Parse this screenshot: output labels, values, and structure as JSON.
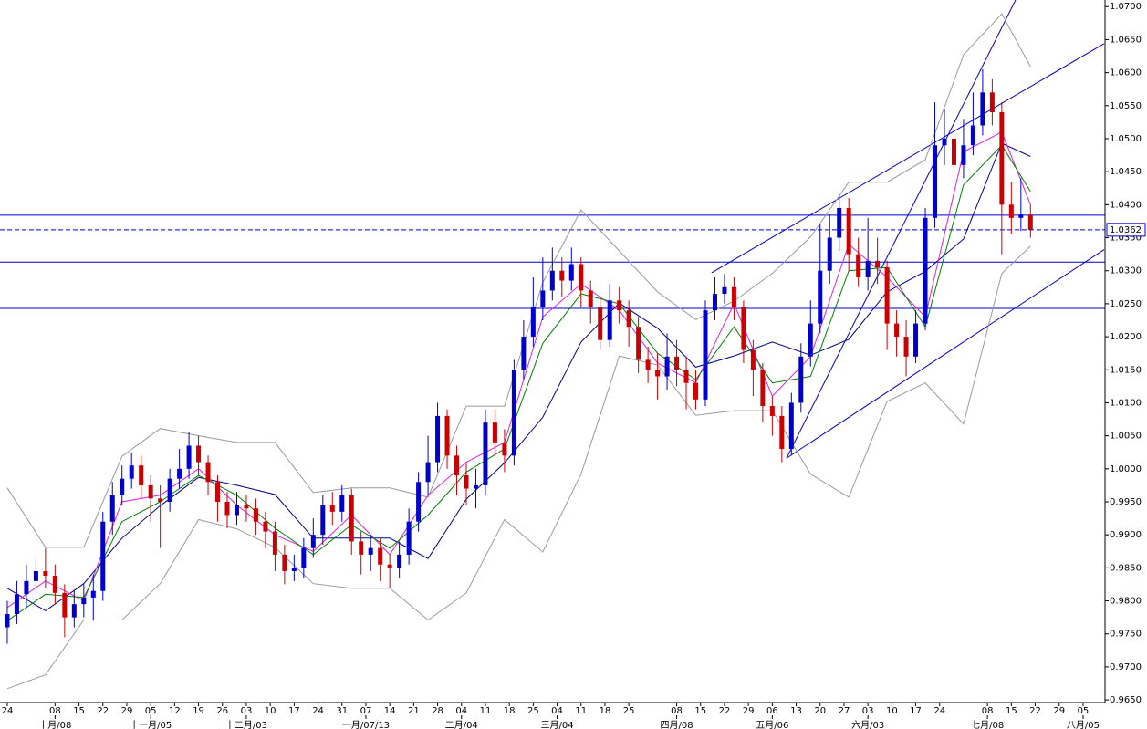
{
  "chart_data": {
    "type": "candlestick",
    "up_color": "#0000cc",
    "down_color": "#cc0000",
    "xlim": [
      -0.76,
      114.7
    ],
    "ylim": [
      0.9646,
      1.071
    ],
    "yticks": [
      {
        "value": 0.965,
        "label": "0.9650"
      },
      {
        "value": 0.97,
        "label": "0.9700"
      },
      {
        "value": 0.975,
        "label": "0.9750"
      },
      {
        "value": 0.98,
        "label": "0.9800"
      },
      {
        "value": 0.985,
        "label": "0.9850"
      },
      {
        "value": 0.99,
        "label": "0.9900"
      },
      {
        "value": 0.995,
        "label": "0.9950"
      },
      {
        "value": 1.0,
        "label": "1.0000"
      },
      {
        "value": 1.005,
        "label": "1.0050"
      },
      {
        "value": 1.01,
        "label": "1.0100"
      },
      {
        "value": 1.015,
        "label": "1.0150"
      },
      {
        "value": 1.02,
        "label": "1.0200"
      },
      {
        "value": 1.025,
        "label": "1.0250"
      },
      {
        "value": 1.03,
        "label": "1.0300"
      },
      {
        "value": 1.035,
        "label": "1.0350"
      },
      {
        "value": 1.04,
        "label": "1.0400"
      },
      {
        "value": 1.045,
        "label": "1.0450"
      },
      {
        "value": 1.05,
        "label": "1.0500"
      },
      {
        "value": 1.055,
        "label": "1.0550"
      },
      {
        "value": 1.06,
        "label": "1.0600"
      },
      {
        "value": 1.065,
        "label": "1.0650"
      },
      {
        "value": 1.07,
        "label": "1.0700"
      }
    ],
    "xticks": [
      {
        "value": 0,
        "label": "24"
      },
      {
        "value": 5,
        "label": "08"
      },
      {
        "value": 7.5,
        "label": "15"
      },
      {
        "value": 10,
        "label": "22"
      },
      {
        "value": 12.5,
        "label": "29"
      },
      {
        "value": 15,
        "label": "05"
      },
      {
        "value": 17.5,
        "label": "12"
      },
      {
        "value": 20,
        "label": "19"
      },
      {
        "value": 22.5,
        "label": "26"
      },
      {
        "value": 25,
        "label": "03"
      },
      {
        "value": 27.5,
        "label": "10"
      },
      {
        "value": 30,
        "label": "17"
      },
      {
        "value": 32.5,
        "label": "24"
      },
      {
        "value": 35,
        "label": "31"
      },
      {
        "value": 37.5,
        "label": "07"
      },
      {
        "value": 40,
        "label": "14"
      },
      {
        "value": 42.5,
        "label": "21"
      },
      {
        "value": 45,
        "label": "28"
      },
      {
        "value": 47.5,
        "label": "04"
      },
      {
        "value": 50,
        "label": "11"
      },
      {
        "value": 52.5,
        "label": "18"
      },
      {
        "value": 55,
        "label": "25"
      },
      {
        "value": 57.5,
        "label": "04"
      },
      {
        "value": 60,
        "label": "11"
      },
      {
        "value": 62.5,
        "label": "18"
      },
      {
        "value": 65,
        "label": "25"
      },
      {
        "value": 70,
        "label": "08"
      },
      {
        "value": 72.5,
        "label": "15"
      },
      {
        "value": 75,
        "label": "22"
      },
      {
        "value": 77.5,
        "label": "29"
      },
      {
        "value": 80,
        "label": "06"
      },
      {
        "value": 82.5,
        "label": "13"
      },
      {
        "value": 85,
        "label": "20"
      },
      {
        "value": 87.5,
        "label": "27"
      },
      {
        "value": 90,
        "label": "03"
      },
      {
        "value": 92.5,
        "label": "10"
      },
      {
        "value": 95,
        "label": "17"
      },
      {
        "value": 97.5,
        "label": "24"
      },
      {
        "value": 102.5,
        "label": "08"
      },
      {
        "value": 105,
        "label": "15"
      },
      {
        "value": 107.5,
        "label": "22"
      },
      {
        "value": 110,
        "label": "29"
      },
      {
        "value": 112.5,
        "label": "05"
      }
    ],
    "month_ticks": [
      {
        "value": 5,
        "label": "十月/08"
      },
      {
        "value": 15,
        "label": "十一月/05"
      },
      {
        "value": 25,
        "label": "十二月/03"
      },
      {
        "value": 37.5,
        "label": "一月/07/13"
      },
      {
        "value": 47.5,
        "label": "二月/04"
      },
      {
        "value": 57.5,
        "label": "三月/04"
      },
      {
        "value": 70,
        "label": "四月/08"
      },
      {
        "value": 80,
        "label": "五月/06"
      },
      {
        "value": 90,
        "label": "六月/03"
      },
      {
        "value": 102.5,
        "label": "七月/08"
      },
      {
        "value": 112.5,
        "label": "八月/05"
      }
    ],
    "candles": {
      "open": [
        0.976,
        0.978,
        0.981,
        0.983,
        0.9845,
        0.9838,
        0.9812,
        0.9775,
        0.9795,
        0.9805,
        0.9815,
        0.992,
        0.996,
        0.9985,
        1.0005,
        0.9975,
        0.9955,
        0.995,
        0.9985,
        1.0,
        1.0035,
        1.001,
        0.998,
        0.995,
        0.993,
        0.9945,
        0.994,
        0.992,
        0.9905,
        0.987,
        0.9845,
        0.985,
        0.988,
        0.99,
        0.9945,
        0.9935,
        0.996,
        0.989,
        0.987,
        0.988,
        0.9855,
        0.985,
        0.987,
        0.992,
        0.998,
        1.001,
        1.008,
        1.002,
        0.999,
        0.997,
        0.9975,
        1.007,
        1.004,
        1.002,
        1.015,
        1.02,
        1.0245,
        1.027,
        1.03,
        1.0285,
        1.031,
        1.027,
        1.0245,
        1.0195,
        1.0255,
        1.024,
        1.0215,
        1.0165,
        1.015,
        1.014,
        1.017,
        1.015,
        1.013,
        1.0105,
        1.024,
        1.0265,
        1.0275,
        1.0245,
        1.018,
        1.015,
        1.0095,
        1.008,
        1.003,
        1.01,
        1.017,
        1.022,
        1.03,
        1.035,
        1.0395,
        1.0325,
        1.029,
        1.0315,
        1.0305,
        1.022,
        1.02,
        1.017,
        1.022,
        1.038,
        1.049,
        1.05,
        1.046,
        1.049,
        1.052,
        1.057,
        1.054,
        1.04,
        1.038,
        1.0385
      ],
      "high": [
        0.98,
        0.983,
        0.9855,
        0.9865,
        0.988,
        0.9855,
        0.9825,
        0.9815,
        0.9825,
        0.984,
        0.9935,
        0.998,
        1.0005,
        1.0025,
        1.002,
        0.999,
        0.9975,
        1.0,
        1.003,
        1.0055,
        1.005,
        1.002,
        0.999,
        0.9965,
        0.9965,
        0.996,
        0.9955,
        0.9935,
        0.992,
        0.9885,
        0.987,
        0.9895,
        0.9925,
        0.996,
        0.9965,
        0.9975,
        0.997,
        0.9905,
        0.99,
        0.9895,
        0.987,
        0.989,
        0.994,
        0.9995,
        1.005,
        1.01,
        1.009,
        1.0035,
        1.001,
        1.0,
        1.009,
        1.009,
        1.006,
        1.0165,
        1.0225,
        1.029,
        1.032,
        1.0335,
        1.032,
        1.0335,
        1.032,
        1.0285,
        1.026,
        1.028,
        1.0275,
        1.0255,
        1.023,
        1.0185,
        1.0175,
        1.0205,
        1.0195,
        1.017,
        1.015,
        1.0255,
        1.029,
        1.0295,
        1.029,
        1.0255,
        1.0195,
        1.016,
        1.011,
        1.0095,
        1.0115,
        1.019,
        1.0255,
        1.037,
        1.0385,
        1.0415,
        1.041,
        1.035,
        1.038,
        1.035,
        1.0315,
        1.024,
        1.0225,
        1.024,
        1.0395,
        1.0555,
        1.0545,
        1.052,
        1.053,
        1.057,
        1.0605,
        1.059,
        1.0555,
        1.0435,
        1.044,
        1.04
      ],
      "low": [
        0.9735,
        0.9765,
        0.979,
        0.981,
        0.982,
        0.9795,
        0.9745,
        0.976,
        0.9775,
        0.977,
        0.98,
        0.99,
        0.9945,
        0.997,
        0.9955,
        0.992,
        0.988,
        0.9935,
        0.997,
        0.9985,
        0.999,
        0.996,
        0.992,
        0.991,
        0.9915,
        0.992,
        0.99,
        0.988,
        0.9845,
        0.9825,
        0.983,
        0.9835,
        0.9865,
        0.9885,
        0.9915,
        0.992,
        0.987,
        0.984,
        0.9845,
        0.983,
        0.982,
        0.9835,
        0.9855,
        0.9905,
        0.996,
        0.9995,
        1.0,
        0.996,
        0.9945,
        0.994,
        0.996,
        1.002,
        0.9995,
        1.0005,
        1.0135,
        1.0185,
        1.0225,
        1.0255,
        1.026,
        1.027,
        1.0245,
        1.022,
        1.018,
        1.0185,
        1.022,
        1.0185,
        1.0145,
        1.013,
        1.0105,
        1.012,
        1.0125,
        1.009,
        1.009,
        1.0095,
        1.0225,
        1.025,
        1.0225,
        1.016,
        1.011,
        1.007,
        1.005,
        1.001,
        1.002,
        1.0085,
        1.0155,
        1.0205,
        1.028,
        1.033,
        1.03,
        1.0275,
        1.027,
        1.028,
        1.018,
        1.017,
        1.014,
        1.016,
        1.021,
        1.0365,
        1.046,
        1.0435,
        1.044,
        1.0475,
        1.0505,
        1.052,
        1.0325,
        1.0355,
        1.036,
        1.035
      ],
      "close": [
        0.978,
        0.981,
        0.983,
        0.9845,
        0.9838,
        0.9812,
        0.9775,
        0.9795,
        0.9805,
        0.9815,
        0.992,
        0.996,
        0.9985,
        1.0005,
        0.9975,
        0.9955,
        0.995,
        0.9985,
        1.0,
        1.0035,
        1.001,
        0.998,
        0.995,
        0.993,
        0.9945,
        0.994,
        0.992,
        0.9905,
        0.987,
        0.9845,
        0.985,
        0.988,
        0.99,
        0.9945,
        0.9935,
        0.996,
        0.989,
        0.987,
        0.988,
        0.9855,
        0.985,
        0.987,
        0.992,
        0.998,
        1.001,
        1.008,
        1.002,
        0.999,
        0.997,
        0.9975,
        1.007,
        1.004,
        1.002,
        1.015,
        1.02,
        1.0245,
        1.027,
        1.03,
        1.0285,
        1.031,
        1.027,
        1.0245,
        1.0195,
        1.0255,
        1.024,
        1.0215,
        1.0165,
        1.015,
        1.014,
        1.017,
        1.015,
        1.013,
        1.0105,
        1.024,
        1.0265,
        1.0275,
        1.0245,
        1.018,
        1.015,
        1.0095,
        1.008,
        1.003,
        1.01,
        1.017,
        1.022,
        1.03,
        1.035,
        1.0395,
        1.0325,
        1.029,
        1.0315,
        1.0305,
        1.022,
        1.02,
        1.017,
        1.022,
        1.038,
        1.049,
        1.05,
        1.046,
        1.049,
        1.052,
        1.057,
        1.054,
        1.04,
        1.038,
        1.0385,
        1.0362
      ]
    },
    "indicators": {
      "x": [
        0,
        4,
        8,
        12,
        16,
        20,
        24,
        28,
        32,
        36,
        40,
        44,
        48,
        52,
        56,
        60,
        64,
        68,
        72,
        76,
        80,
        84,
        88,
        92,
        96,
        100,
        104,
        107
      ],
      "lines": [
        {
          "color": "#9a9a9a",
          "values": [
            0.9971,
            0.9881,
            0.9881,
            1.0019,
            1.0061,
            1.005,
            1.004,
            1.004,
            0.9964,
            0.9971,
            0.9971,
            0.9957,
            1.0095,
            1.0095,
            1.0282,
            1.0392,
            1.033,
            1.0268,
            1.0226,
            1.0254,
            1.0296,
            1.0351,
            1.0434,
            1.0434,
            1.0468,
            1.0627,
            1.0689,
            1.0609
          ]
        },
        {
          "color": "#9a9a9a",
          "values": [
            0.9667,
            0.9688,
            0.9771,
            0.9771,
            0.9826,
            0.9923,
            0.9909,
            0.9881,
            0.9826,
            0.9819,
            0.9819,
            0.9771,
            0.9812,
            0.9923,
            0.9874,
            0.9992,
            1.0171,
            1.0157,
            1.0081,
            1.0088,
            1.0088,
            0.9992,
            0.9957,
            1.0102,
            1.013,
            1.0068,
            1.0296,
            1.0337
          ]
        },
        {
          "color": "#00008b",
          "values": [
            0.9819,
            0.9785,
            0.9826,
            0.9895,
            0.9944,
            0.9987,
            0.9975,
            0.9961,
            0.9895,
            0.9895,
            0.9895,
            0.9864,
            0.9954,
            1.0009,
            1.0078,
            1.0192,
            1.0251,
            1.0213,
            1.0154,
            1.0171,
            1.0192,
            1.0172,
            1.0196,
            1.0268,
            1.0299,
            1.0348,
            1.0493,
            1.0473
          ]
        },
        {
          "color": "#e020e0",
          "values": [
            0.979,
            0.983,
            0.98,
            0.995,
            0.996,
            1.0,
            0.9945,
            0.99,
            0.9875,
            0.993,
            0.987,
            0.996,
            1.001,
            1.004,
            1.023,
            1.028,
            1.024,
            1.016,
            1.013,
            1.025,
            1.011,
            1.017,
            1.034,
            1.029,
            1.023,
            1.048,
            1.051,
            1.04
          ]
        },
        {
          "color": "#008000",
          "values": [
            0.977,
            0.981,
            0.9805,
            0.992,
            0.995,
            0.999,
            0.996,
            0.991,
            0.987,
            0.9915,
            0.988,
            0.993,
            0.9995,
            1.003,
            1.019,
            1.0265,
            1.025,
            1.0175,
            1.0135,
            1.0215,
            1.013,
            1.014,
            1.03,
            1.0305,
            1.0215,
            1.043,
            1.049,
            1.042
          ]
        }
      ]
    },
    "hlines": [
      1.0384,
      1.0313,
      1.0243
    ],
    "hline_color": "#0000cc",
    "trendlines": [
      {
        "x": [
          73.66,
          114.7
        ],
        "y": [
          1.0297,
          1.0644
        ]
      },
      {
        "x": [
          81.49,
          114.7
        ],
        "y": [
          1.0016,
          1.0332
        ]
      },
      {
        "x": [
          81.49,
          105.44
        ],
        "y": [
          1.0016,
          1.071
        ]
      }
    ],
    "trendline_color": "#0000cc",
    "last_price": 1.0362
  }
}
